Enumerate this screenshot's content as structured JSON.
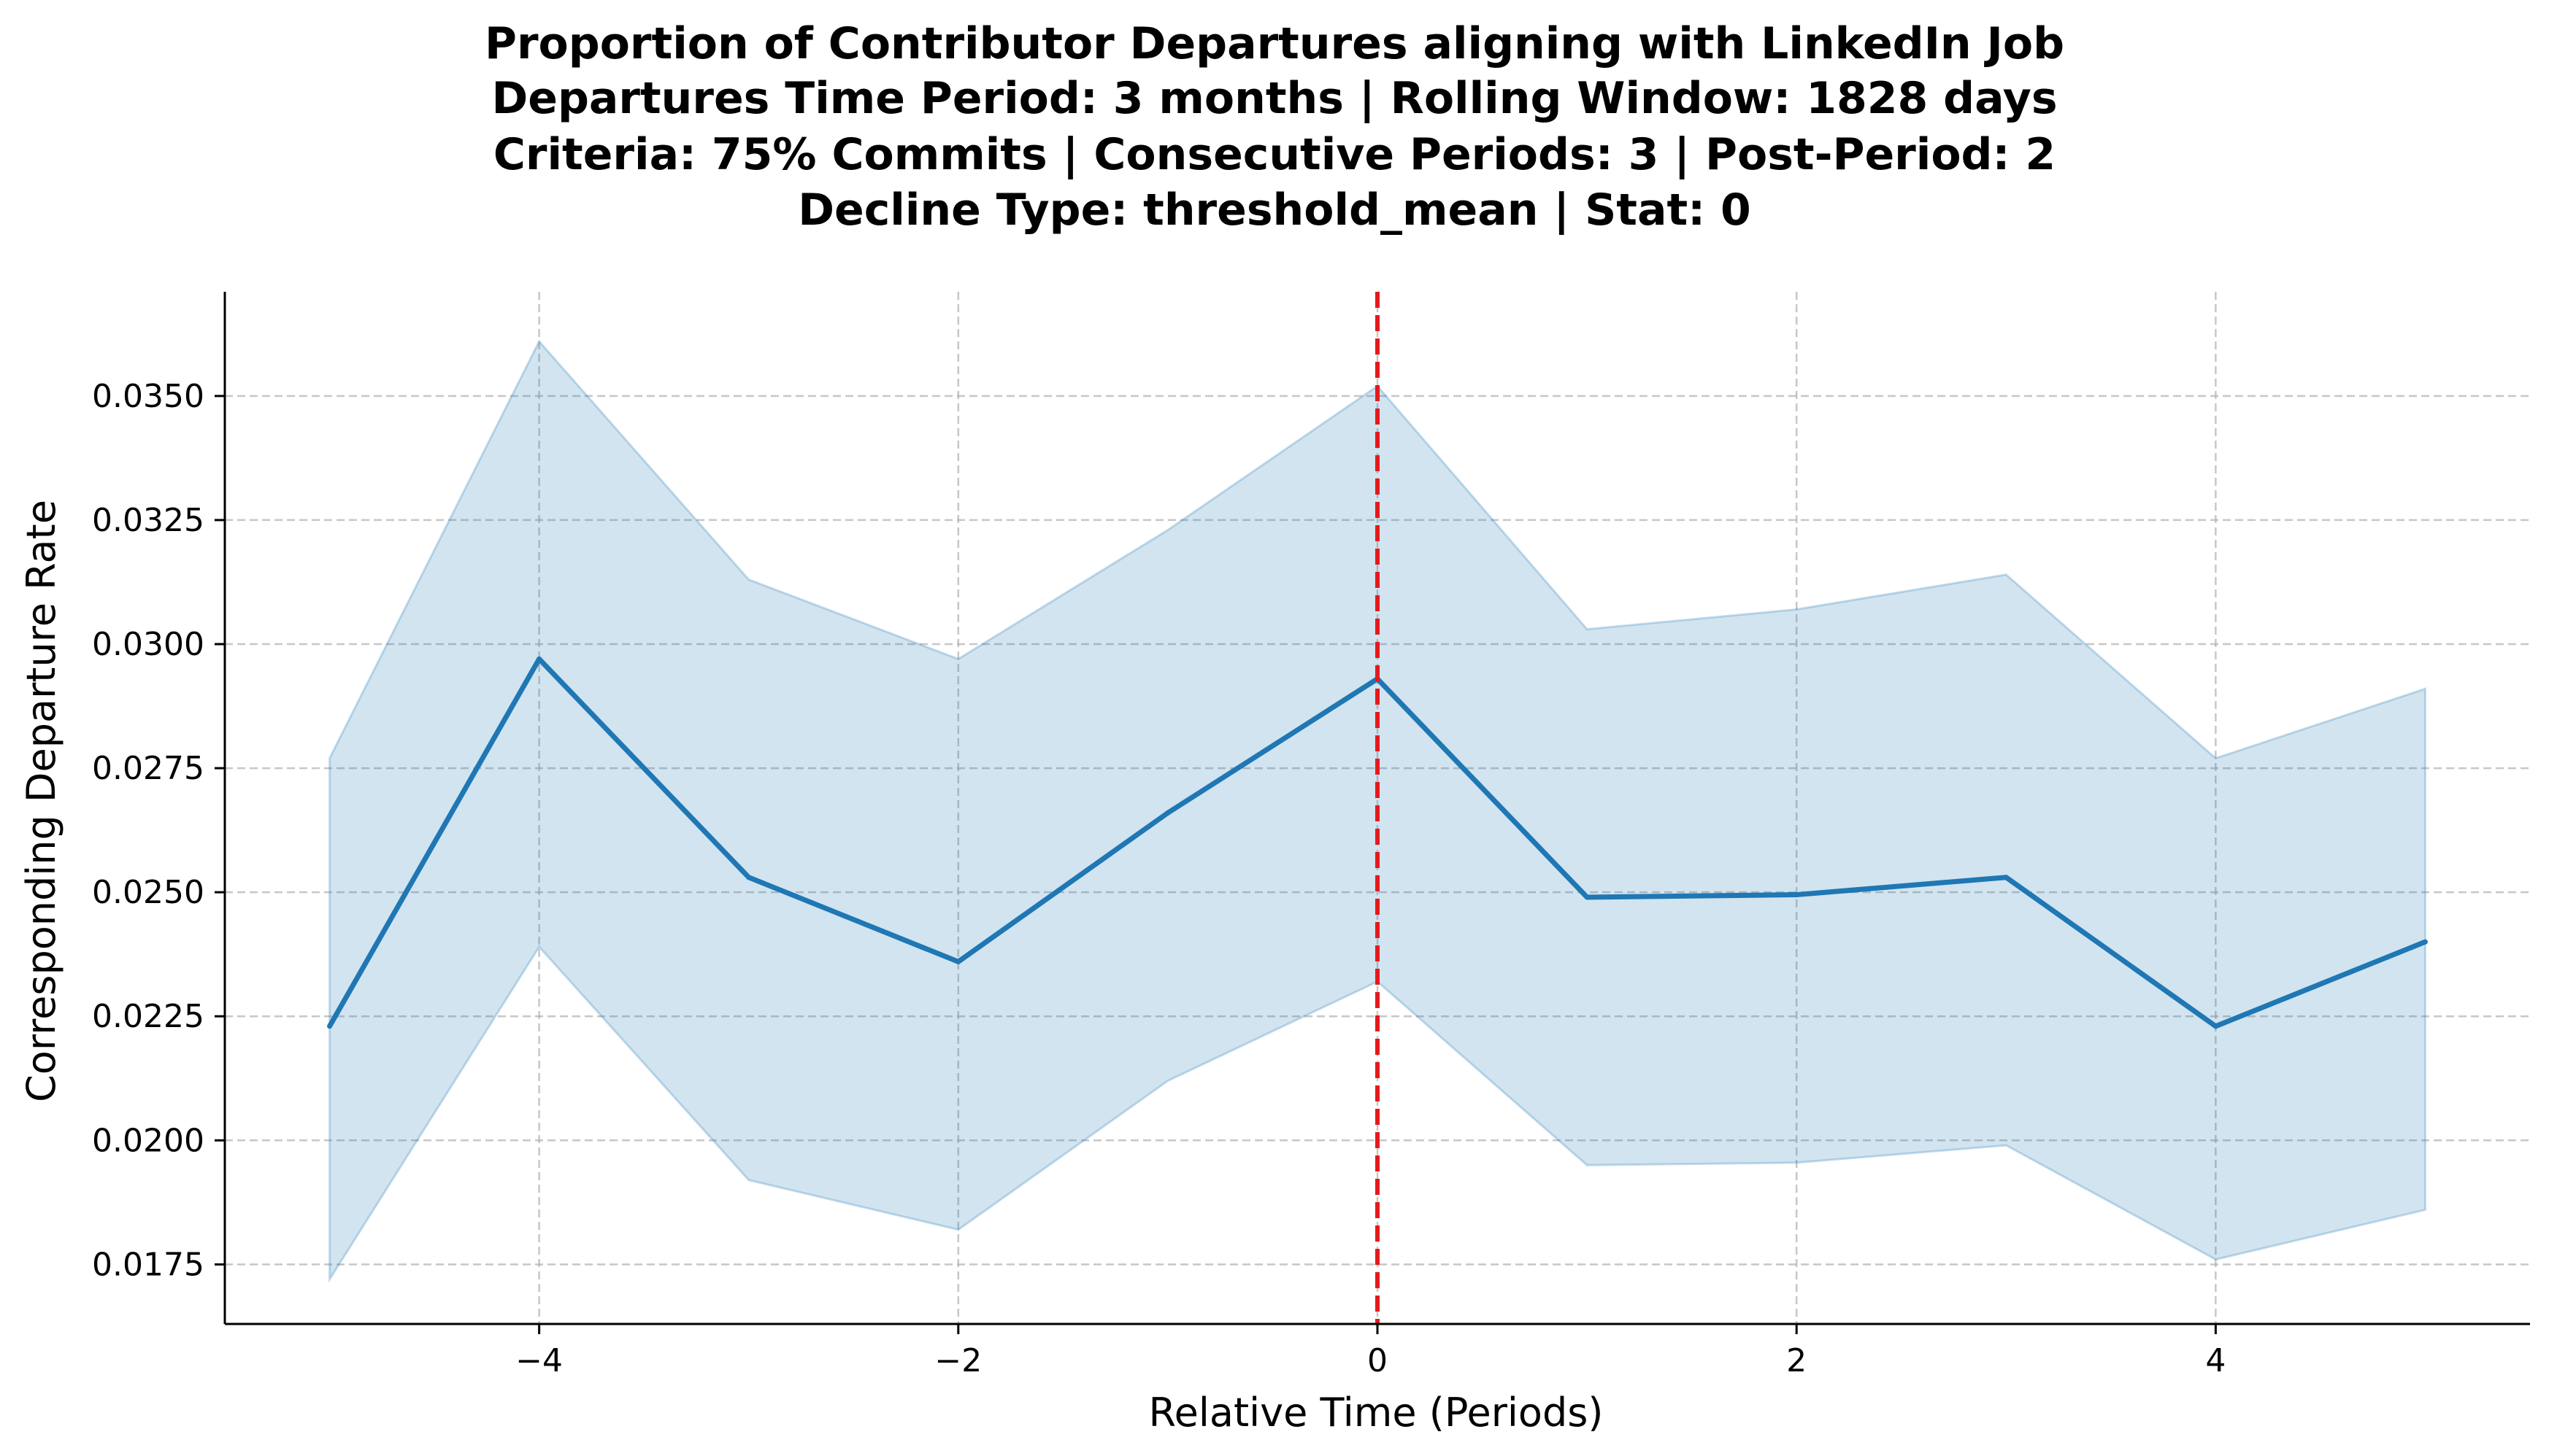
{
  "chart_data": {
    "type": "line",
    "title_lines": [
      "Proportion of Contributor Departures aligning with LinkedIn Job",
      "Departures Time Period: 3 months | Rolling Window: 1828 days",
      "Criteria: 75% Commits | Consecutive Periods: 3 | Post-Period: 2",
      "Decline Type: threshold_mean | Stat: 0"
    ],
    "xlabel": "Relative Time (Periods)",
    "ylabel": "Corresponding Departure Rate",
    "xlim": [
      -5.5,
      5.5
    ],
    "ylim": [
      0.0163,
      0.0371
    ],
    "x_ticks": [
      -4,
      -2,
      0,
      2,
      4
    ],
    "x_tick_labels": [
      "−4",
      "−2",
      "0",
      "2",
      "4"
    ],
    "y_ticks": [
      0.0175,
      0.02,
      0.0225,
      0.025,
      0.0275,
      0.03,
      0.0325,
      0.035
    ],
    "y_tick_labels": [
      "0.0175",
      "0.0200",
      "0.0225",
      "0.0250",
      "0.0275",
      "0.0300",
      "0.0325",
      "0.0350"
    ],
    "grid": true,
    "x": [
      -5,
      -4,
      -3,
      -2,
      -1,
      0,
      1,
      2,
      3,
      4,
      5
    ],
    "series": [
      {
        "values": [
          0.0223,
          0.0297,
          0.0253,
          0.0236,
          0.0266,
          0.0293,
          0.0249,
          0.02495,
          0.0253,
          0.0223,
          0.024
        ],
        "ci_upper": [
          0.0277,
          0.0361,
          0.0313,
          0.0297,
          0.0323,
          0.0352,
          0.0303,
          0.0307,
          0.0314,
          0.0277,
          0.0291
        ],
        "ci_lower": [
          0.0172,
          0.0239,
          0.0192,
          0.0182,
          0.0212,
          0.0232,
          0.0195,
          0.01955,
          0.0199,
          0.0176,
          0.0186
        ],
        "color": "#1f77b4"
      }
    ],
    "reference_line": {
      "x": 0,
      "color": "#e41a1c",
      "style": "dashed"
    }
  }
}
